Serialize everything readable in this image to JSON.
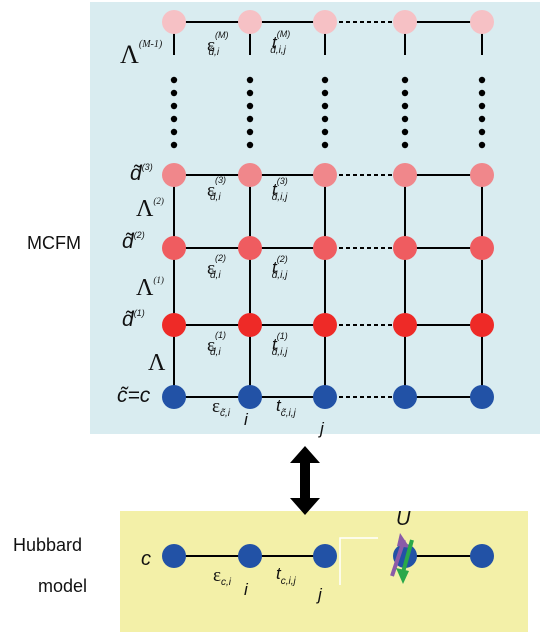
{
  "colors": {
    "mcfm_panel": "#d9ecf0",
    "hubbard_panel": "#f3f0a8",
    "node_c": "#2252a6",
    "node_d1": "#ee2a27",
    "node_d2": "#ef5c60",
    "node_d3": "#f0878b",
    "node_top": "#f6c1c5",
    "spin_up": "#8a5aa8",
    "spin_down": "#2aa84a"
  },
  "labels": {
    "mcfm": "MCFM",
    "hubbard_line1": "Hubbard",
    "hubbard_line2": "model",
    "U": "U",
    "c": "c",
    "i": "i",
    "j": "j",
    "i_bottom": "i",
    "j_bottom": "j"
  },
  "rows": {
    "top": {
      "lambda": "Λ",
      "lambda_sup": "(M-1)",
      "eps_sup": "(M)",
      "eps_sub": "d̃,i",
      "t_sup": "(M)",
      "t_sub": "d̃,i,j"
    },
    "d3": {
      "left": "d̃",
      "left_sup": "(3)",
      "eps_sup": "(3)",
      "eps_sub": "d̃,i",
      "t_sup": "(3)",
      "t_sub": "d̃,i,j"
    },
    "d2": {
      "left": "d̃",
      "left_sup": "(2)",
      "lambda": "Λ",
      "lambda_sup": "(2)",
      "eps_sup": "(2)",
      "eps_sub": "d̃,i",
      "t_sup": "(2)",
      "t_sub": "d̃,i,j"
    },
    "d1": {
      "left": "d̃",
      "left_sup": "(1)",
      "lambda": "Λ",
      "lambda_sup": "(1)",
      "eps_sup": "(1)",
      "eps_sub": "d̃,i",
      "t_sup": "(1)",
      "t_sub": "d̃,i,j"
    },
    "c": {
      "left": "c̃=c",
      "lambda": "Λ",
      "eps_sub": "c̃,i",
      "t_sub": "c̃,i,j"
    },
    "hubbard": {
      "eps_sub": "c,i",
      "t_sub": "c,i,j"
    }
  },
  "symbols": {
    "eps": "ε",
    "t": "t"
  }
}
